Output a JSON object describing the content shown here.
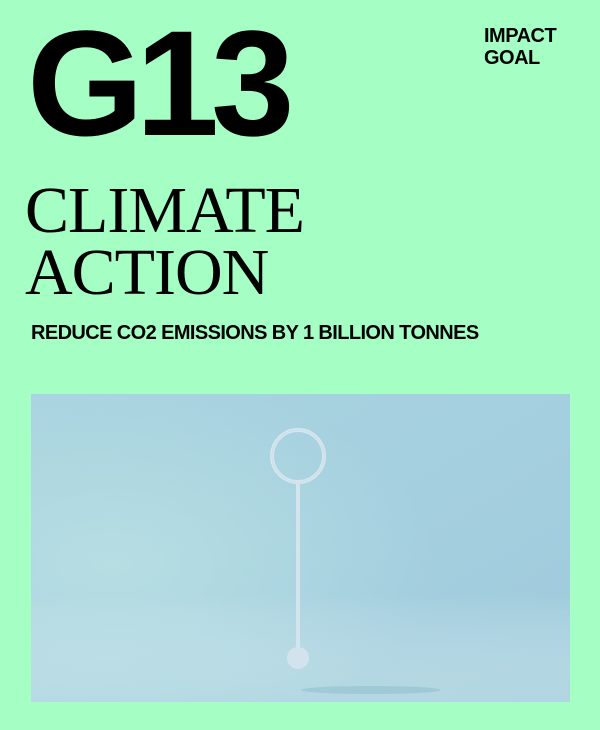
{
  "colors": {
    "background": "#a5ffc5",
    "text": "#000000",
    "photo_sky": "#a9d3df",
    "photo_floor": "#b6dde4",
    "object": "#d6e6ef"
  },
  "card": {
    "goal_code": "G13",
    "badge": {
      "line1": "IMPACT",
      "line2": "GOAL"
    },
    "title": {
      "line1": "CLIMATE",
      "line2": "ACTION"
    },
    "target": "REDUCE CO2 EMISSIONS BY 1 BILLION TONNES"
  }
}
